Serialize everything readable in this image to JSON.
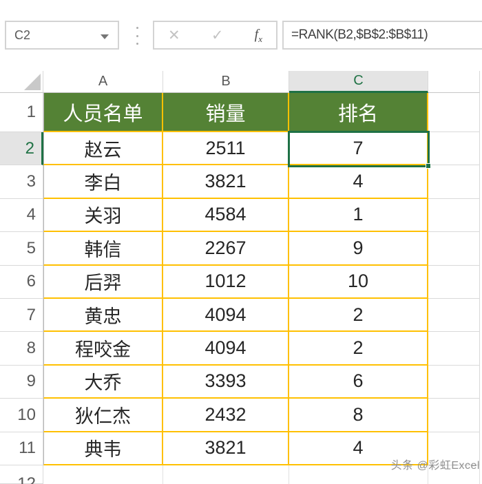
{
  "formula_bar": {
    "name_box_value": "C2",
    "cancel_label": "✕",
    "enter_label": "✓",
    "fx_label": "f",
    "fx_sub": "x",
    "formula": "=RANK(B2,$B$2:$B$11)"
  },
  "grid": {
    "column_headers": [
      "A",
      "B",
      "C"
    ],
    "selected_column": "C",
    "selected_cell": "C2",
    "header_row": {
      "row_number": "1",
      "cells": [
        "人员名单",
        "销量",
        "排名"
      ]
    },
    "rows": [
      {
        "row_number": "2",
        "name": "赵云",
        "sales": "2511",
        "rank": "7",
        "selected": true
      },
      {
        "row_number": "3",
        "name": "李白",
        "sales": "3821",
        "rank": "4"
      },
      {
        "row_number": "4",
        "name": "关羽",
        "sales": "4584",
        "rank": "1"
      },
      {
        "row_number": "5",
        "name": "韩信",
        "sales": "2267",
        "rank": "9"
      },
      {
        "row_number": "6",
        "name": "后羿",
        "sales": "1012",
        "rank": "10"
      },
      {
        "row_number": "7",
        "name": "黄忠",
        "sales": "4094",
        "rank": "2"
      },
      {
        "row_number": "8",
        "name": "程咬金",
        "sales": "4094",
        "rank": "2"
      },
      {
        "row_number": "9",
        "name": "大乔",
        "sales": "3393",
        "rank": "6"
      },
      {
        "row_number": "10",
        "name": "狄仁杰",
        "sales": "2432",
        "rank": "8"
      },
      {
        "row_number": "11",
        "name": "典韦",
        "sales": "3821",
        "rank": "4"
      }
    ],
    "partial_row_number": "12"
  },
  "watermark": "头条 @彩虹Excel",
  "colors": {
    "header_fill": "#548235",
    "table_border": "#FFC000",
    "selection_green": "#1E7145",
    "selected_header_bg": "#E4E4E4"
  }
}
